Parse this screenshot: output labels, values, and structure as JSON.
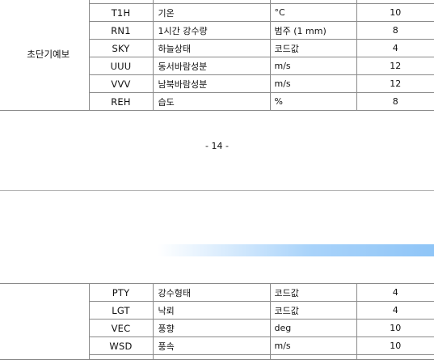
{
  "table_top": {
    "category": "초단기예보",
    "rows": [
      {
        "code": "",
        "name": "",
        "unit": "",
        "digits": ""
      },
      {
        "code": "T1H",
        "name": "기온",
        "unit": "°C",
        "digits": "10"
      },
      {
        "code": "RN1",
        "name": "1시간 강수량",
        "unit": "범주 (1 mm)",
        "digits": "8"
      },
      {
        "code": "SKY",
        "name": "하늘상태",
        "unit": "코드값",
        "digits": "4"
      },
      {
        "code": "UUU",
        "name": "동서바람성분",
        "unit": "m/s",
        "digits": "12"
      },
      {
        "code": "VVV",
        "name": "남북바람성분",
        "unit": "m/s",
        "digits": "12"
      },
      {
        "code": "REH",
        "name": "습도",
        "unit": "%",
        "digits": "8"
      }
    ]
  },
  "page_number": "- 14 -",
  "table_bottom": {
    "category": "",
    "rows": [
      {
        "code": "PTY",
        "name": "강수형태",
        "unit": "코드값",
        "digits": "4"
      },
      {
        "code": "LGT",
        "name": "낙뢰",
        "unit": "코드값",
        "digits": "4"
      },
      {
        "code": "VEC",
        "name": "풍향",
        "unit": "deg",
        "digits": "10"
      },
      {
        "code": "WSD",
        "name": "풍속",
        "unit": "m/s",
        "digits": "10"
      }
    ]
  }
}
